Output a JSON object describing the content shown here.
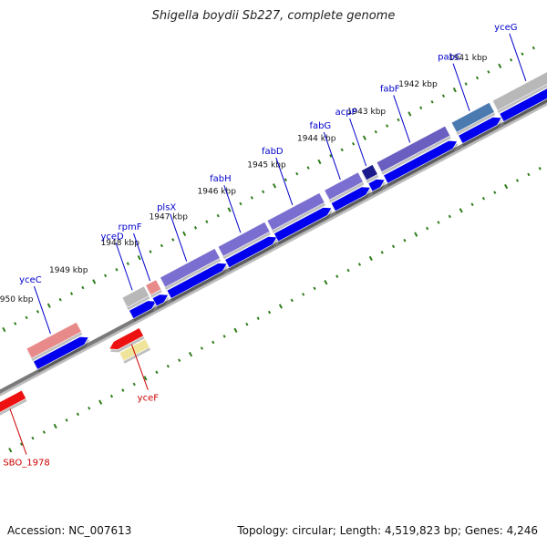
{
  "title": "Shigella boydii Sb227, complete genome",
  "footer": {
    "accession": "Accession: NC_007613",
    "summary": "Topology: circular; Length: 4,519,823 bp; Genes: 4,246"
  },
  "colors": {
    "forward_label": "#0000cc",
    "reverse_label": "#cc0000",
    "backbone": "#7a7a7a",
    "tick": "#2e7d1a"
  },
  "positions_kbp": [
    {
      "label": "1950 kbp"
    },
    {
      "label": "1949 kbp"
    },
    {
      "label": "1948 kbp"
    },
    {
      "label": "1947 kbp"
    },
    {
      "label": "1946 kbp"
    },
    {
      "label": "1945 kbp"
    },
    {
      "label": "1944 kbp"
    },
    {
      "label": "1943 kbp"
    },
    {
      "label": "1942 kbp"
    },
    {
      "label": "1941 kbp"
    }
  ],
  "forward_genes": [
    {
      "name": "yceC",
      "color": "#e88a8a"
    },
    {
      "name": "yceD",
      "color": "#b8b8b8"
    },
    {
      "name": "rpmF",
      "color": "#e88a8a"
    },
    {
      "name": "plsX",
      "color": "#7a6fd0"
    },
    {
      "name": "fabH",
      "color": "#7a6fd0"
    },
    {
      "name": "fabD",
      "color": "#7a6fd0"
    },
    {
      "name": "fabG",
      "color": "#7a6fd0"
    },
    {
      "name": "acpP",
      "color": "#1a1a8c"
    },
    {
      "name": "fabF",
      "color": "#6a5fc0"
    },
    {
      "name": "pabC",
      "color": "#4a7ab0"
    },
    {
      "name": "yceG",
      "color": "#b8b8b8"
    }
  ],
  "reverse_genes": [
    {
      "name": "yceF",
      "color": "#ee1111"
    },
    {
      "name": "SBO_1978",
      "color": "#ee1111"
    }
  ]
}
